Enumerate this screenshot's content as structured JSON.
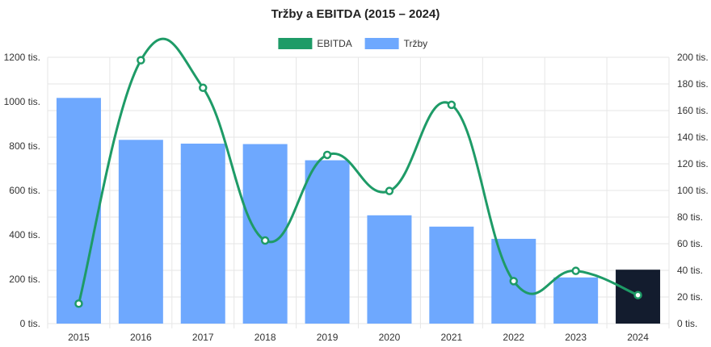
{
  "chart_data": {
    "type": "bar",
    "title": "Tržby a EBITDA (2015 – 2024)",
    "categories": [
      "2015",
      "2016",
      "2017",
      "2018",
      "2019",
      "2020",
      "2021",
      "2022",
      "2023",
      "2024"
    ],
    "legend": {
      "placement": "top-center",
      "items": [
        "EBITDA",
        "Tržby"
      ]
    },
    "grid": true,
    "series": [
      {
        "name": "Tržby",
        "type": "bar",
        "axis": "left",
        "color": "#6EA8FE",
        "highlight_color": "#131C2E",
        "highlight_category": "2024",
        "values": [
          1017000,
          828000,
          811000,
          809000,
          736000,
          488000,
          437000,
          382000,
          208000,
          243000
        ]
      },
      {
        "name": "EBITDA",
        "type": "line",
        "axis": "right",
        "color": "#1E9B67",
        "smooth": true,
        "values": [
          15000,
          197800,
          177100,
          62400,
          126700,
          99600,
          164300,
          31900,
          39600,
          21400
        ]
      }
    ],
    "y_left": {
      "ylim": [
        0,
        1200000
      ],
      "ticks": [
        {
          "value": 0,
          "label": "0 tis."
        },
        {
          "value": 200000,
          "label": "200 tis."
        },
        {
          "value": 400000,
          "label": "400 tis."
        },
        {
          "value": 600000,
          "label": "600 tis."
        },
        {
          "value": 800000,
          "label": "800 tis."
        },
        {
          "value": 1000000,
          "label": "1000 tis."
        },
        {
          "value": 1200000,
          "label": "1200 tis."
        }
      ]
    },
    "y_right": {
      "ylim": [
        0,
        200000
      ],
      "ticks": [
        {
          "value": 0,
          "label": "0 tis."
        },
        {
          "value": 20000,
          "label": "20 tis."
        },
        {
          "value": 40000,
          "label": "40 tis."
        },
        {
          "value": 60000,
          "label": "60 tis."
        },
        {
          "value": 80000,
          "label": "80 tis."
        },
        {
          "value": 100000,
          "label": "100 tis."
        },
        {
          "value": 120000,
          "label": "120 tis."
        },
        {
          "value": 140000,
          "label": "140 tis."
        },
        {
          "value": 160000,
          "label": "160 tis."
        },
        {
          "value": 180000,
          "label": "180 tis."
        },
        {
          "value": 200000,
          "label": "200 tis."
        }
      ]
    }
  }
}
